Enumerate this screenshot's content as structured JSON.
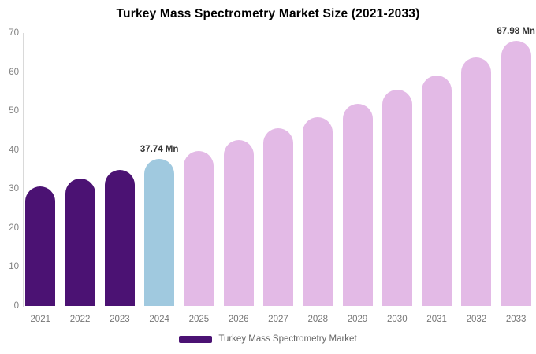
{
  "title": "Turkey Mass Spectrometry Market Size (2021-2033)",
  "legend": {
    "label": "Turkey Mass Spectrometry Market",
    "swatch_color": "#4b1273"
  },
  "colors": {
    "historical_bar": "#4b1273",
    "base_year_bar": "#a0c9df",
    "forecast_bar": "#e3bae6",
    "axis_line": "#d9d9d9",
    "tick_text": "#808080",
    "annotation_text": "#333333",
    "background": "#ffffff"
  },
  "chart_data": {
    "type": "bar",
    "title": "Turkey Mass Spectrometry Market Size (2021-2033)",
    "xlabel": "",
    "ylabel": "",
    "unit": "Mn",
    "categories": [
      "2021",
      "2022",
      "2023",
      "2024",
      "2025",
      "2026",
      "2027",
      "2028",
      "2029",
      "2030",
      "2031",
      "2032",
      "2033"
    ],
    "values": [
      30.7,
      32.6,
      35.0,
      37.74,
      39.8,
      42.6,
      45.5,
      48.4,
      51.9,
      55.4,
      59.1,
      63.7,
      67.98
    ],
    "bar_colors": [
      "#4b1273",
      "#4b1273",
      "#4b1273",
      "#a0c9df",
      "#e3bae6",
      "#e3bae6",
      "#e3bae6",
      "#e3bae6",
      "#e3bae6",
      "#e3bae6",
      "#e3bae6",
      "#e3bae6",
      "#e3bae6"
    ],
    "annotations": [
      {
        "category": "2024",
        "text": "37.74 Mn"
      },
      {
        "category": "2033",
        "text": "67.98 Mn"
      }
    ],
    "ylim": [
      0,
      70
    ],
    "yticks": [
      0,
      10,
      20,
      30,
      40,
      50,
      60,
      70
    ],
    "grid": false,
    "legend_position": "bottom",
    "legend_entries": [
      "Turkey Mass Spectrometry Market"
    ]
  }
}
